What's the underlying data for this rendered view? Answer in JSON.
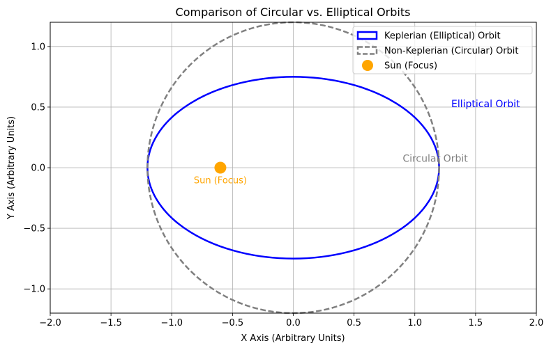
{
  "chart_data": {
    "type": "line",
    "title": "Comparison of Circular vs. Elliptical Orbits",
    "xlabel": "X Axis (Arbitrary Units)",
    "ylabel": "Y Axis (Arbitrary Units)",
    "xlim": [
      -2.0,
      2.0
    ],
    "ylim": [
      -1.2,
      1.2
    ],
    "grid": true,
    "legend_position": "top-right",
    "x_ticks": [
      -2.0,
      -1.5,
      -1.0,
      -0.5,
      0.0,
      0.5,
      1.0,
      1.5,
      2.0
    ],
    "x_tick_labels": [
      "−2.0",
      "−1.5",
      "−1.0",
      "−0.5",
      "0.0",
      "0.5",
      "1.0",
      "1.5",
      "2.0"
    ],
    "y_ticks": [
      -1.0,
      -0.5,
      0.0,
      0.5,
      1.0
    ],
    "y_tick_labels": [
      "−1.0",
      "−0.5",
      "0.0",
      "0.5",
      "1.0"
    ],
    "series": [
      {
        "name": "Keplerian (Elliptical) Orbit",
        "shape": "ellipse",
        "center": [
          0,
          0
        ],
        "semi_major": 1.2,
        "semi_minor": 0.75,
        "color": "#0000ff",
        "style": "solid"
      },
      {
        "name": "Non-Keplerian (Circular) Orbit",
        "shape": "circle",
        "center": [
          0,
          0
        ],
        "radius": 1.2,
        "color": "#808080",
        "style": "dashed"
      },
      {
        "name": "Sun (Focus)",
        "shape": "point",
        "x": -0.6,
        "y": 0.0,
        "color": "#ffa500"
      }
    ],
    "annotations": [
      {
        "text": "Elliptical Orbit",
        "x": 1.3,
        "y": 0.5,
        "color": "#0000ff"
      },
      {
        "text": "Circular Orbit",
        "x": 0.9,
        "y": 0.05,
        "color": "#808080"
      },
      {
        "text": "Sun (Focus)",
        "x": -0.6,
        "y": -0.13,
        "color": "#ffa500"
      }
    ]
  }
}
